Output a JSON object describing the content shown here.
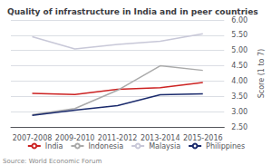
{
  "chart_data": {
    "type": "line",
    "title": "Quality of infrastructure in India and in peer countries",
    "source": "Source: World Economic Forum",
    "ylabel": "Score (1 to 7)",
    "categories": [
      "2007-2008",
      "2009-2010",
      "2011-2012",
      "2013-2014",
      "2015-2016"
    ],
    "series": [
      {
        "name": "India",
        "color": "#cc2222",
        "values": [
          3.6,
          3.56,
          3.73,
          3.78,
          3.95
        ]
      },
      {
        "name": "Indonesia",
        "color": "#aaaaaa",
        "values": [
          2.9,
          3.1,
          3.7,
          4.5,
          4.35
        ]
      },
      {
        "name": "Malaysia",
        "color": "#c8c8d8",
        "values": [
          5.45,
          5.05,
          5.2,
          5.3,
          5.55
        ]
      },
      {
        "name": "Philippines",
        "color": "#1a2a6c",
        "values": [
          2.88,
          3.05,
          3.2,
          3.55,
          3.58
        ]
      }
    ],
    "ylim": [
      2.5,
      6.0
    ],
    "yticks": [
      {
        "value": 2.5,
        "label": "2.50"
      },
      {
        "value": 3.0,
        "label": "3.00"
      },
      {
        "value": 3.5,
        "label": "3.50"
      },
      {
        "value": 4.0,
        "label": "4.00"
      },
      {
        "value": 4.5,
        "label": "4.50"
      },
      {
        "value": 5.0,
        "label": "5.00"
      },
      {
        "value": 5.5,
        "label": "5.50"
      },
      {
        "value": 6.0,
        "label": "6.00"
      }
    ],
    "grid": true,
    "legend": "bottom"
  }
}
